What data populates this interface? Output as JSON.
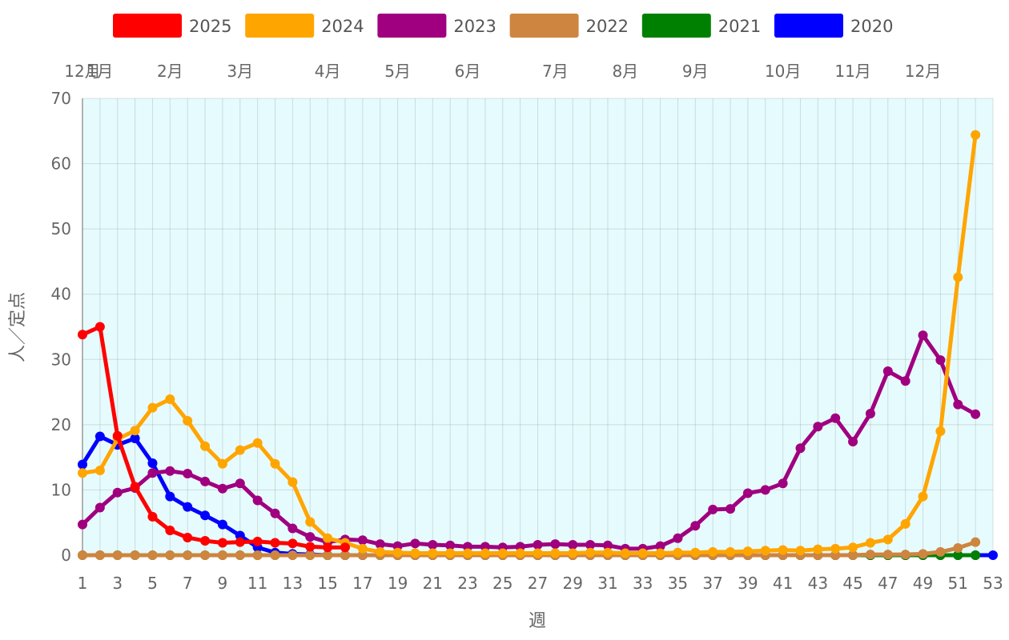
{
  "chart_data": {
    "type": "line",
    "xlabel": "週",
    "ylabel": "人／定点",
    "ylim": [
      0,
      70
    ],
    "xlim": [
      1,
      53
    ],
    "y_ticks": [
      "0",
      "10",
      "20",
      "30",
      "40",
      "50",
      "60",
      "70"
    ],
    "x_ticks": [
      "1",
      "3",
      "5",
      "7",
      "9",
      "11",
      "13",
      "15",
      "17",
      "19",
      "21",
      "23",
      "25",
      "27",
      "29",
      "31",
      "33",
      "35",
      "37",
      "39",
      "41",
      "43",
      "45",
      "47",
      "49",
      "51",
      "53"
    ],
    "month_labels": [
      {
        "label": "12月",
        "week": 1
      },
      {
        "label": "1月",
        "week": 2
      },
      {
        "label": "2月",
        "week": 6
      },
      {
        "label": "3月",
        "week": 10
      },
      {
        "label": "4月",
        "week": 15
      },
      {
        "label": "5月",
        "week": 19
      },
      {
        "label": "6月",
        "week": 23
      },
      {
        "label": "7月",
        "week": 28
      },
      {
        "label": "8月",
        "week": 32
      },
      {
        "label": "9月",
        "week": 36
      },
      {
        "label": "10月",
        "week": 41
      },
      {
        "label": "11月",
        "week": 45
      },
      {
        "label": "12月",
        "week": 49
      }
    ],
    "grid": true,
    "legend_position": "top",
    "plot_background": "#e6fbfd",
    "series": [
      {
        "name": "2025",
        "color": "#ff0000",
        "start_week": 1,
        "values": [
          33.8,
          35.0,
          18.3,
          10.5,
          5.9,
          3.8,
          2.7,
          2.2,
          1.9,
          2.0,
          2.1,
          1.9,
          1.8,
          1.3,
          1.2,
          1.2
        ]
      },
      {
        "name": "2024",
        "color": "#ffa500",
        "start_week": 1,
        "values": [
          12.6,
          13.0,
          17.8,
          19.1,
          22.6,
          23.9,
          20.6,
          16.7,
          14.0,
          16.1,
          17.2,
          14.0,
          11.2,
          5.1,
          2.6,
          1.9,
          1.0,
          0.5,
          0.4,
          0.3,
          0.3,
          0.3,
          0.3,
          0.3,
          0.3,
          0.3,
          0.3,
          0.3,
          0.3,
          0.4,
          0.4,
          0.3,
          0.3,
          0.3,
          0.4,
          0.4,
          0.5,
          0.5,
          0.6,
          0.7,
          0.8,
          0.7,
          0.9,
          1.0,
          1.2,
          1.9,
          2.4,
          4.8,
          9.0,
          19.0,
          42.6,
          64.4
        ]
      },
      {
        "name": "2023",
        "color": "#a0007f",
        "start_week": 1,
        "values": [
          4.7,
          7.3,
          9.6,
          10.3,
          12.6,
          12.9,
          12.5,
          11.3,
          10.2,
          11.0,
          8.4,
          6.4,
          4.1,
          2.8,
          2.0,
          2.4,
          2.3,
          1.7,
          1.4,
          1.8,
          1.6,
          1.5,
          1.3,
          1.3,
          1.2,
          1.3,
          1.6,
          1.7,
          1.6,
          1.6,
          1.5,
          1.0,
          1.0,
          1.4,
          2.6,
          4.5,
          7.0,
          7.1,
          9.5,
          10.0,
          11.0,
          16.4,
          19.7,
          21.0,
          17.4,
          21.7,
          28.2,
          26.7,
          33.7,
          29.9,
          23.1,
          21.6
        ]
      },
      {
        "name": "2022",
        "color": "#cd853f",
        "start_week": 1,
        "values": [
          0,
          0,
          0,
          0,
          0,
          0,
          0,
          0,
          0,
          0,
          0,
          0,
          0,
          0,
          0,
          0,
          0,
          0,
          0,
          0,
          0,
          0,
          0,
          0,
          0,
          0,
          0,
          0,
          0,
          0,
          0,
          0,
          0,
          0,
          0,
          0,
          0,
          0,
          0,
          0,
          0,
          0,
          0,
          0,
          0,
          0.1,
          0.1,
          0.1,
          0.2,
          0.5,
          1.1,
          2.0
        ]
      },
      {
        "name": "2021",
        "color": "#008000",
        "start_week": 1,
        "values": [
          0,
          0,
          0,
          0,
          0,
          0,
          0,
          0,
          0,
          0,
          0,
          0,
          0,
          0,
          0,
          0,
          0,
          0,
          0,
          0,
          0,
          0,
          0,
          0,
          0,
          0,
          0,
          0,
          0,
          0,
          0,
          0,
          0,
          0,
          0,
          0,
          0,
          0,
          0,
          0,
          0,
          0,
          0,
          0,
          0,
          0,
          0,
          0,
          0,
          0,
          0,
          0
        ]
      },
      {
        "name": "2020",
        "color": "#0000ff",
        "start_week": 1,
        "values": [
          13.9,
          18.2,
          16.9,
          17.9,
          14.1,
          9.0,
          7.4,
          6.1,
          4.7,
          3.0,
          1.2,
          0.4,
          0.2,
          0.1,
          0,
          0,
          0,
          0,
          0,
          0,
          0,
          0,
          0,
          0,
          0,
          0,
          0,
          0,
          0,
          0,
          0,
          0,
          0,
          0,
          0,
          0,
          0,
          0,
          0,
          0,
          0,
          0,
          0,
          0,
          0,
          0,
          0,
          0,
          0,
          0,
          0,
          0,
          0
        ]
      }
    ]
  }
}
